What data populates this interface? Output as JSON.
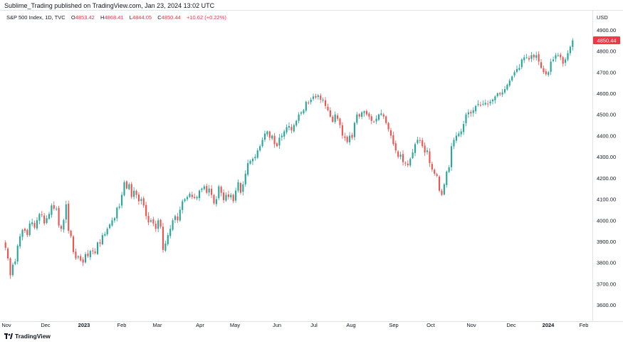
{
  "header": {
    "publisher_line": "Sublime_Trading published on TradingView.com, Jan 23, 2024 13:02 UTC",
    "symbol_line": "S&P 500 Index, 1D, TVC",
    "open_label": "O",
    "open_value": "4853.42",
    "high_label": "H",
    "high_value": "4868.41",
    "low_label": "L",
    "low_value": "4844.05",
    "close_label": "C",
    "close_value": "4850.44",
    "change": "+10.62 (+0.22%)"
  },
  "price_axis": {
    "currency": "USD"
  },
  "footer": {
    "brand": "TradingView"
  },
  "colors": {
    "up": "#26a69a",
    "down": "#ef5350",
    "last_price_bg": "#f23645",
    "grid_line": "#e0e3eb"
  },
  "chart_data": {
    "type": "candlestick",
    "timeframe": "1D",
    "ylim": [
      3560,
      4940
    ],
    "y_ticks": [
      "3600.00",
      "3700.00",
      "3800.00",
      "3900.00",
      "4000.00",
      "4100.00",
      "4200.00",
      "4300.00",
      "4400.00",
      "4500.00",
      "4600.00",
      "4700.00",
      "4800.00",
      "4900.00"
    ],
    "x_ticks": [
      {
        "label": "Nov",
        "bold": false
      },
      {
        "label": "Dec",
        "bold": false
      },
      {
        "label": "2023",
        "bold": true
      },
      {
        "label": "Feb",
        "bold": false
      },
      {
        "label": "Mar",
        "bold": false
      },
      {
        "label": "Apr",
        "bold": false
      },
      {
        "label": "May",
        "bold": false
      },
      {
        "label": "Jun",
        "bold": false
      },
      {
        "label": "Jul",
        "bold": false
      },
      {
        "label": "Aug",
        "bold": false
      },
      {
        "label": "Sep",
        "bold": false
      },
      {
        "label": "Oct",
        "bold": false
      },
      {
        "label": "Nov",
        "bold": false
      },
      {
        "label": "Dec",
        "bold": false
      },
      {
        "label": "2024",
        "bold": true
      },
      {
        "label": "Feb",
        "bold": false
      }
    ],
    "last_price": "4850.44",
    "closes": [
      3870,
      3820,
      3740,
      3790,
      3805,
      3880,
      3925,
      3955,
      3950,
      3930,
      3985,
      3990,
      3965,
      4000,
      4030,
      4025,
      3985,
      4010,
      4030,
      4070,
      4055,
      4055,
      3975,
      3960,
      4000,
      4075,
      3950,
      3925,
      3850,
      3820,
      3830,
      3810,
      3800,
      3840,
      3830,
      3855,
      3855,
      3845,
      3895,
      3890,
      3930,
      3935,
      3960,
      3980,
      4000,
      4010,
      4060,
      4065,
      4120,
      4180,
      4150,
      4170,
      4110,
      4140,
      4120,
      4090,
      4100,
      4070,
      4020,
      3990,
      4000,
      3985,
      3960,
      4000,
      3970,
      3860,
      3890,
      3930,
      3960,
      4000,
      4020,
      4000,
      4050,
      4090,
      4100,
      4110,
      4125,
      4110,
      4105,
      4110,
      4140,
      4150,
      4160,
      4130,
      4150,
      4120,
      4080,
      4100,
      4160,
      4130,
      4095,
      4120,
      4110,
      4120,
      4090,
      4140,
      4180,
      4130,
      4170,
      4220,
      4270,
      4280,
      4290,
      4300,
      4330,
      4350,
      4380,
      4410,
      4420,
      4390,
      4400,
      4360,
      4350,
      4390,
      4400,
      4420,
      4440,
      4445,
      4425,
      4450,
      4470,
      4500,
      4510,
      4520,
      4560,
      4555,
      4570,
      4585,
      4580,
      4590,
      4570,
      4570,
      4540,
      4520,
      4490,
      4465,
      4500,
      4480,
      4450,
      4400,
      4390,
      4370,
      4400,
      4390,
      4460,
      4500,
      4490,
      4510,
      4515,
      4500,
      4490,
      4470,
      4465,
      4480,
      4500,
      4505,
      4490,
      4460,
      4430,
      4400,
      4360,
      4330,
      4300,
      4310,
      4275,
      4270,
      4260,
      4290,
      4320,
      4360,
      4380,
      4375,
      4350,
      4320,
      4330,
      4270,
      4240,
      4220,
      4210,
      4140,
      4120,
      4170,
      4230,
      4250,
      4350,
      4380,
      4400,
      4410,
      4420,
      4455,
      4500,
      4510,
      4505,
      4520,
      4540,
      4550,
      4545,
      4550,
      4555,
      4550,
      4560,
      4570,
      4585,
      4600,
      4595,
      4604,
      4620,
      4640,
      4660,
      4680,
      4700,
      4715,
      4720,
      4760,
      4770,
      4770,
      4760,
      4780,
      4770,
      4780,
      4750,
      4720,
      4700,
      4690,
      4700,
      4750,
      4760,
      4780,
      4780,
      4770,
      4740,
      4760,
      4790,
      4820,
      4850
    ]
  }
}
